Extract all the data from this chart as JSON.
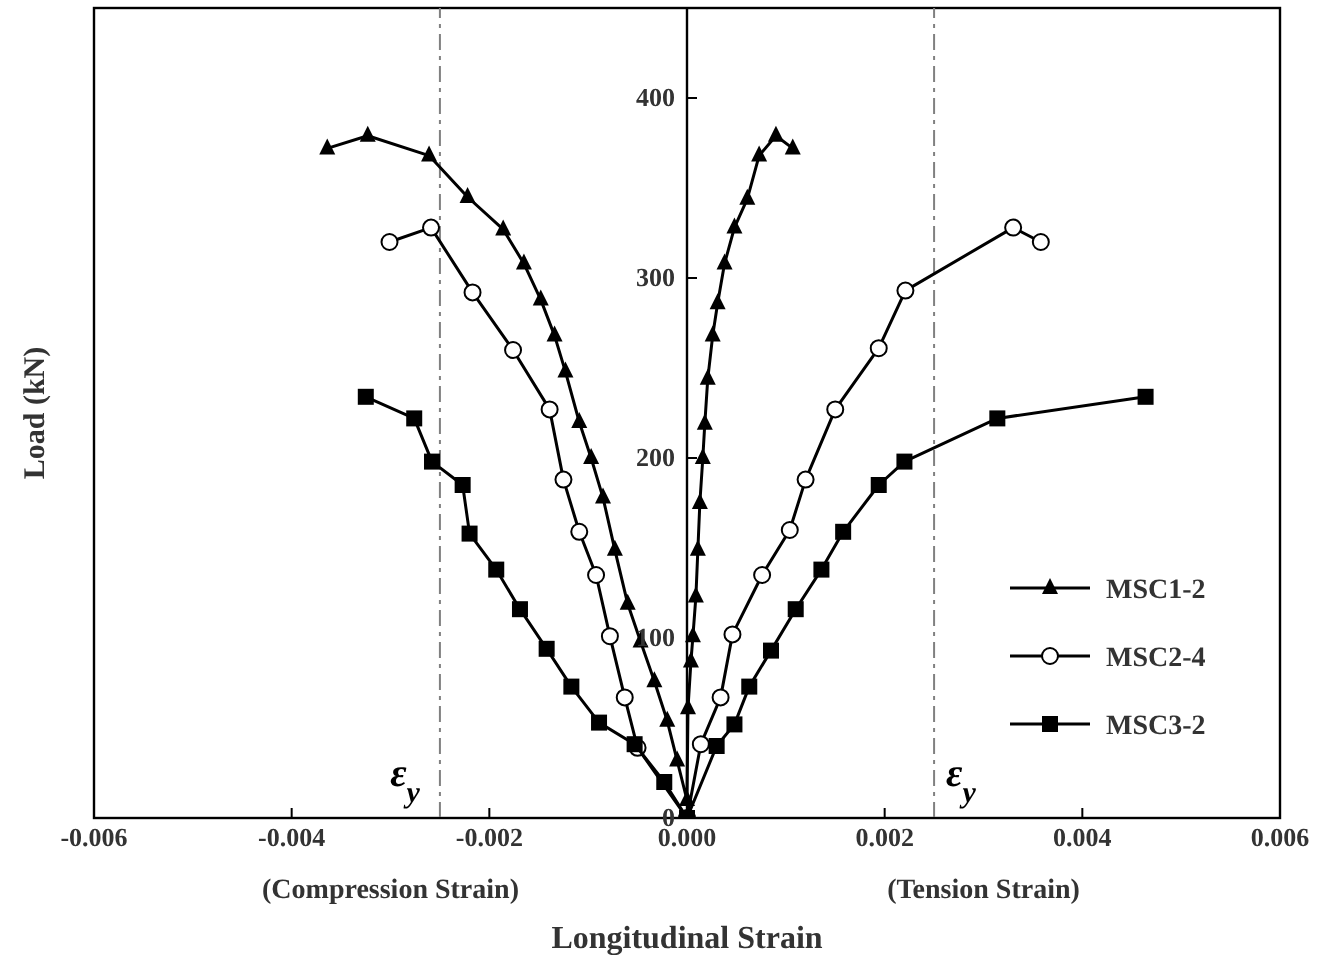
{
  "chart_data": {
    "type": "line",
    "xlabel": "Longitudinal Strain",
    "ylabel": "Load (kN)",
    "xlim": [
      -0.006,
      0.006
    ],
    "ylim": [
      0,
      450
    ],
    "xticks": [
      {
        "value": -0.006,
        "label": "-0.006"
      },
      {
        "value": -0.004,
        "label": "-0.004"
      },
      {
        "value": -0.002,
        "label": "-0.002"
      },
      {
        "value": 0,
        "label": "0.000"
      },
      {
        "value": 0.002,
        "label": "0.002"
      },
      {
        "value": 0.004,
        "label": "0.004"
      },
      {
        "value": 0.006,
        "label": "0.006"
      }
    ],
    "yticks": [
      0,
      100,
      200,
      300,
      400
    ],
    "legend": "bottom right",
    "annotations": [
      "(Compression Strain)",
      "(Tension Strain)"
    ],
    "ref_lines": [
      {
        "axis": "x",
        "value": -0.0025,
        "label": "ε$_{y}$",
        "color": "#808080",
        "line_style": "dashed"
      },
      {
        "axis": "x",
        "value": 0.0025,
        "label": "ε$_{y}$",
        "color": "#808080",
        "line_style": "dashed"
      }
    ],
    "series": [
      {
        "name": "MSC1-2",
        "color": "#000000",
        "marker": "triangle",
        "x": [
          -0.00364,
          -0.00323,
          -0.00261,
          -0.00222,
          -0.00186,
          -0.00165,
          -0.00148,
          -0.00134,
          -0.00123,
          -0.00109,
          -0.00097,
          -0.00085,
          -0.00073,
          -0.0006,
          -0.00047,
          -0.00033,
          -0.0002,
          -0.0001,
          0,
          1e-05,
          4e-05,
          6e-05,
          9e-05,
          0.00011,
          0.00013,
          0.00016,
          0.00018,
          0.00021,
          0.00026,
          0.00031,
          0.00038,
          0.00048,
          0.00061,
          0.00073,
          0.0009,
          0.00107
        ],
        "values": [
          372,
          379,
          368,
          345,
          327,
          308,
          288,
          268,
          248,
          220,
          200,
          178,
          149,
          119,
          98,
          76,
          54,
          32,
          10,
          61,
          87,
          101,
          123,
          149,
          175,
          200,
          219,
          244,
          268,
          286,
          308,
          328,
          344,
          368,
          379,
          372
        ]
      },
      {
        "name": "MSC2-4",
        "color": "#000000",
        "marker": "circle",
        "x": [
          -0.00301,
          -0.00259,
          -0.00217,
          -0.00176,
          -0.00139,
          -0.00125,
          -0.00109,
          -0.00092,
          -0.00078,
          -0.00063,
          -0.0005,
          0,
          0.00014,
          0.00034,
          0.00046,
          0.00076,
          0.00104,
          0.0012,
          0.0015,
          0.00194,
          0.00221,
          0.0033,
          0.00358
        ],
        "values": [
          320,
          328,
          292,
          260,
          227,
          188,
          159,
          135,
          101,
          67,
          39,
          0,
          41,
          67,
          102,
          135,
          160,
          188,
          227,
          261,
          293,
          328,
          320
        ]
      },
      {
        "name": "MSC3-2",
        "color": "#000000",
        "marker": "square",
        "x": [
          -0.00325,
          -0.00276,
          -0.00258,
          -0.00227,
          -0.0022,
          -0.00193,
          -0.00169,
          -0.00142,
          -0.00117,
          -0.00089,
          -0.00053,
          -0.00023,
          0,
          0.0003,
          0.00048,
          0.00063,
          0.00085,
          0.0011,
          0.00136,
          0.00158,
          0.00194,
          0.0022,
          0.00314,
          0.00464
        ],
        "values": [
          234,
          222,
          198,
          185,
          158,
          138,
          116,
          94,
          73,
          53,
          41,
          20,
          0,
          40,
          52,
          73,
          93,
          116,
          138,
          159,
          185,
          198,
          222,
          234
        ]
      }
    ]
  }
}
